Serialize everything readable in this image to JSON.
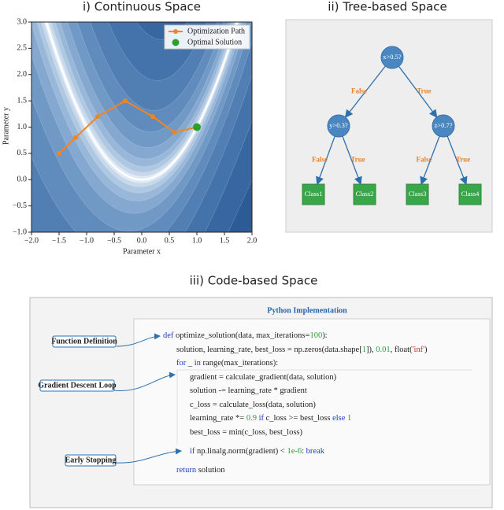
{
  "chart_data": {
    "type": "line",
    "title": "i) Continuous Space",
    "x_label": "Parameter x",
    "y_label": "Parameter y",
    "xlim": [
      -2,
      2
    ],
    "ylim": [
      -1,
      3
    ],
    "xticks": [
      {
        "value": -2,
        "label": "−2.0"
      },
      {
        "value": -1.5,
        "label": "−1.5"
      },
      {
        "value": -1,
        "label": "−1.0"
      },
      {
        "value": -0.5,
        "label": "−0.5"
      },
      {
        "value": 0,
        "label": "0.0"
      },
      0.5,
      {
        "value": 1,
        "label": "1.0"
      },
      1.5,
      {
        "value": 2,
        "label": "2.0"
      }
    ],
    "yticks": [
      {
        "value": -1,
        "label": "−1.0"
      },
      {
        "value": -0.5,
        "label": "−0.5"
      },
      {
        "value": 0,
        "label": "0.0"
      },
      0.5,
      {
        "value": 1,
        "label": "1.0"
      },
      1.5,
      {
        "value": 2,
        "label": "2.0"
      },
      2.5,
      {
        "value": 3,
        "label": "3.0"
      }
    ],
    "series": [
      {
        "name": "Optimization Path",
        "color": "#f5841f",
        "x": [
          -1.5,
          -1.2,
          -0.8,
          -0.3,
          0.2,
          0.6,
          1.0
        ],
        "values": [
          0.5,
          0.8,
          1.2,
          1.5,
          1.2,
          0.9,
          1.0
        ]
      },
      {
        "name": "Optimal Solution",
        "color": "#2ca02c",
        "type": "scatter",
        "x": [
          1.0
        ],
        "values": [
          1.0
        ]
      }
    ],
    "legend": "upper right"
  },
  "tree": {
    "title": "ii) Tree-based Space",
    "nodes": [
      "x>0.5?",
      "y>0.3?",
      "z>0.7?",
      "Class1",
      "Class2",
      "Class3",
      "Class4"
    ],
    "edges": [
      "False",
      "True",
      "False",
      "True",
      "False",
      "True"
    ]
  },
  "code": {
    "title": "iii) Code-based Space",
    "header": "Python Implementation",
    "annotations": [
      "Function Definition",
      "Gradient Descent Loop",
      "Early Stopping"
    ],
    "lines": [
      [
        {
          "text": "def",
          "color": "#1f3fbf"
        },
        {
          "text": " optimize_solution(data, max_iterations=",
          "color": "#222222"
        },
        {
          "text": "100",
          "color": "#2e9a3a"
        },
        {
          "text": "):",
          "color": "#222222"
        }
      ],
      [
        {
          "text": "solution, learning_rate, best_loss = np.zeros(data.shape[",
          "color": "#222222"
        },
        {
          "text": "1",
          "color": "#2e9a3a"
        },
        {
          "text": "]), ",
          "color": "#222222"
        },
        {
          "text": "0.01",
          "color": "#2e9a3a"
        },
        {
          "text": ", float(",
          "color": "#222222"
        },
        {
          "text": "'inf'",
          "color": "#c0392b"
        },
        {
          "text": ")",
          "color": "#222222"
        }
      ],
      [
        {
          "text": "for",
          "color": "#1f3fbf"
        },
        {
          "text": " _ ",
          "color": "#222222"
        },
        {
          "text": "in",
          "color": "#1f3fbf"
        },
        {
          "text": " range(max_iterations):",
          "color": "#222222"
        }
      ],
      [
        {
          "text": "gradient = calculate_gradient(data, solution)",
          "color": "#222222"
        }
      ],
      [
        {
          "text": "solution -= learning_rate * gradient",
          "color": "#222222"
        }
      ],
      [
        {
          "text": "c_loss = calculate_loss(data, solution)",
          "color": "#222222"
        }
      ],
      [
        {
          "text": "learning_rate *= ",
          "color": "#222222"
        },
        {
          "text": "0.9",
          "color": "#2e9a3a"
        },
        {
          "text": " ",
          "color": "#222222"
        },
        {
          "text": "if",
          "color": "#1f3fbf"
        },
        {
          "text": " c_loss >= best_loss ",
          "color": "#222222"
        },
        {
          "text": "else",
          "color": "#1f3fbf"
        },
        {
          "text": " ",
          "color": "#222222"
        },
        {
          "text": "1",
          "color": "#2e9a3a"
        }
      ],
      [
        {
          "text": "best_loss = min(c_loss, best_loss)",
          "color": "#222222"
        }
      ],
      [
        {
          "text": "if",
          "color": "#1f3fbf"
        },
        {
          "text": " np.linalg.norm(gradient) < ",
          "color": "#222222"
        },
        {
          "text": "1e-6",
          "color": "#2e9a3a"
        },
        {
          "text": ": ",
          "color": "#222222"
        },
        {
          "text": "break",
          "color": "#1f3fbf"
        }
      ],
      [
        {
          "text": "return",
          "color": "#1f3fbf"
        },
        {
          "text": " solution",
          "color": "#222222"
        }
      ]
    ]
  }
}
